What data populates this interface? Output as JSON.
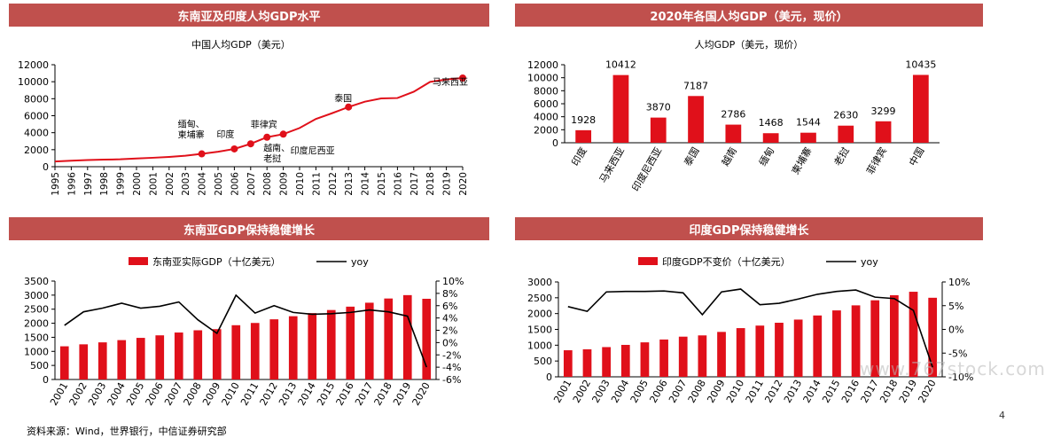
{
  "colors": {
    "accent": "#c0504d",
    "bar": "#e0101a",
    "line": "#000000",
    "marker": "#e0101a"
  },
  "footer": {
    "source": "资料来源：Wind，世界银行，中信证券研究部",
    "page_number": "4",
    "watermark": "www.767stock.com"
  },
  "chart_data": [
    {
      "type": "line",
      "title": "东南亚及印度人均GDP水平",
      "subtitle": "中国人均GDP（美元）",
      "x": [
        1995,
        1996,
        1997,
        1998,
        1999,
        2000,
        2001,
        2002,
        2003,
        2004,
        2005,
        2006,
        2007,
        2008,
        2009,
        2010,
        2011,
        2012,
        2013,
        2014,
        2015,
        2016,
        2017,
        2018,
        2019,
        2020
      ],
      "series": [
        {
          "name": "",
          "values": [
            610,
            710,
            780,
            830,
            870,
            960,
            1050,
            1150,
            1290,
            1510,
            1760,
            2090,
            2690,
            3470,
            3830,
            4550,
            5620,
            6300,
            7020,
            7650,
            8030,
            8080,
            8820,
            9980,
            10260,
            10435
          ]
        }
      ],
      "ylim": [
        0,
        12000
      ],
      "yticks": [
        "0",
        "2000",
        "4000",
        "6000",
        "8000",
        "10000",
        "12000"
      ],
      "xticks": [
        "1995",
        "1996",
        "1997",
        "1998",
        "1999",
        "2000",
        "2001",
        "2002",
        "2003",
        "2004",
        "2005",
        "2006",
        "2007",
        "2008",
        "2009",
        "2010",
        "2011",
        "2012",
        "2013",
        "2014",
        "2015",
        "2016",
        "2017",
        "2018",
        "2019",
        "2020"
      ],
      "annotations": [
        {
          "label": "缅甸、",
          "label2": "柬埔寨",
          "x": 2004,
          "y": 1510
        },
        {
          "label": "印度",
          "label2": "",
          "x": 2006,
          "y": 2090
        },
        {
          "label": "菲律宾",
          "label2": "",
          "x": 2007,
          "y": 2690
        },
        {
          "label": "越南、",
          "label2": "老挝",
          "x": 2008,
          "y": 3470
        },
        {
          "label": "印度尼西亚",
          "label2": "",
          "x": 2009,
          "y": 3830
        },
        {
          "label": "泰国",
          "label2": "",
          "x": 2013,
          "y": 7020
        },
        {
          "label": "马来西亚",
          "label2": "",
          "x": 2020,
          "y": 10435
        }
      ],
      "grid": false
    },
    {
      "type": "bar",
      "title": "2020年各国人均GDP（美元，现价）",
      "subtitle": "人均GDP（美元，现价）",
      "categories": [
        "印度",
        "马来西亚",
        "印度尼西亚",
        "泰国",
        "越南",
        "缅甸",
        "柬埔寨",
        "老挝",
        "菲律宾",
        "中国"
      ],
      "values": [
        1928,
        10412,
        3870,
        7187,
        2786,
        1468,
        1544,
        2630,
        3299,
        10435
      ],
      "value_labels": [
        "1928",
        "10412",
        "3870",
        "7187",
        "2786",
        "1468",
        "1544",
        "2630",
        "3299",
        "10435"
      ],
      "ylim": [
        0,
        12000
      ],
      "yticks": [
        "0",
        "2000",
        "4000",
        "6000",
        "8000",
        "10000",
        "12000"
      ],
      "grid": false
    },
    {
      "type": "bar",
      "title": "东南亚GDP保持稳健增长",
      "categories": [
        "2001",
        "2002",
        "2003",
        "2004",
        "2005",
        "2006",
        "2007",
        "2008",
        "2009",
        "2010",
        "2011",
        "2012",
        "2013",
        "2014",
        "2015",
        "2016",
        "2017",
        "2018",
        "2019",
        "2020"
      ],
      "series": [
        {
          "name": "东南亚实际GDP（十亿美元）",
          "type": "bar",
          "axis": "left",
          "values": [
            1180,
            1250,
            1320,
            1400,
            1480,
            1570,
            1670,
            1750,
            1790,
            1930,
            2010,
            2140,
            2250,
            2360,
            2470,
            2590,
            2730,
            2880,
            3000,
            2870
          ]
        },
        {
          "name": "yoy",
          "type": "line",
          "axis": "right",
          "values": [
            2.8,
            5.0,
            5.6,
            6.4,
            5.6,
            5.9,
            6.6,
            3.7,
            1.5,
            7.7,
            4.8,
            6.0,
            4.9,
            4.6,
            4.7,
            4.9,
            5.3,
            5.0,
            4.3,
            -4.0
          ]
        }
      ],
      "ylim": [
        0,
        3500
      ],
      "y2lim": [
        -6,
        10
      ],
      "yticks": [
        "0",
        "500",
        "1000",
        "1500",
        "2000",
        "2500",
        "3000",
        "3500"
      ],
      "y2ticks": [
        "-6%",
        "-4%",
        "-2%",
        "0%",
        "2%",
        "4%",
        "6%",
        "8%",
        "10%"
      ],
      "legend": "top",
      "grid": false
    },
    {
      "type": "bar",
      "title": "印度GDP保持稳健增长",
      "categories": [
        "2001",
        "2002",
        "2003",
        "2004",
        "2005",
        "2006",
        "2007",
        "2008",
        "2009",
        "2010",
        "2011",
        "2012",
        "2013",
        "2014",
        "2015",
        "2016",
        "2017",
        "2018",
        "2019",
        "2020"
      ],
      "series": [
        {
          "name": "印度GDP不变价（十亿美元）",
          "type": "bar",
          "axis": "left",
          "values": [
            840,
            870,
            940,
            1010,
            1090,
            1180,
            1270,
            1310,
            1420,
            1540,
            1620,
            1710,
            1810,
            1940,
            2100,
            2260,
            2420,
            2580,
            2690,
            2500
          ]
        },
        {
          "name": "yoy",
          "type": "line",
          "axis": "right",
          "values": [
            4.8,
            3.8,
            7.9,
            8.0,
            8.0,
            8.1,
            7.7,
            3.1,
            7.9,
            8.5,
            5.2,
            5.5,
            6.4,
            7.4,
            8.0,
            8.3,
            6.8,
            6.5,
            4.0,
            -8.0
          ]
        }
      ],
      "ylim": [
        0,
        3000
      ],
      "y2lim": [
        -10,
        10
      ],
      "yticks": [
        "0",
        "500",
        "1000",
        "1500",
        "2000",
        "2500",
        "3000"
      ],
      "y2ticks": [
        "-10%",
        "-5%",
        "0%",
        "5%",
        "10%"
      ],
      "legend": "top",
      "grid": false
    }
  ]
}
